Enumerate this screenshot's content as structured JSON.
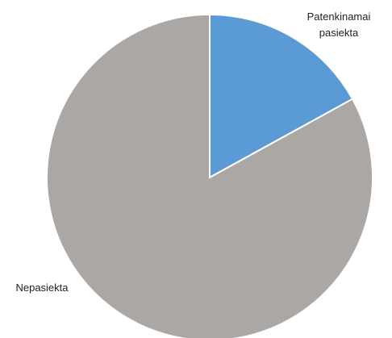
{
  "chart_data": {
    "type": "pie",
    "start_angle_deg": 0,
    "direction": "clockwise",
    "slices": [
      {
        "label_lines": [
          "Patenkinamai",
          "pasiekta"
        ],
        "value": 0.17,
        "color": "#5b9bd5"
      },
      {
        "label_lines": [
          "Nepasiekta"
        ],
        "value": 0.83,
        "color": "#aba7a5"
      }
    ],
    "legend": "none"
  }
}
